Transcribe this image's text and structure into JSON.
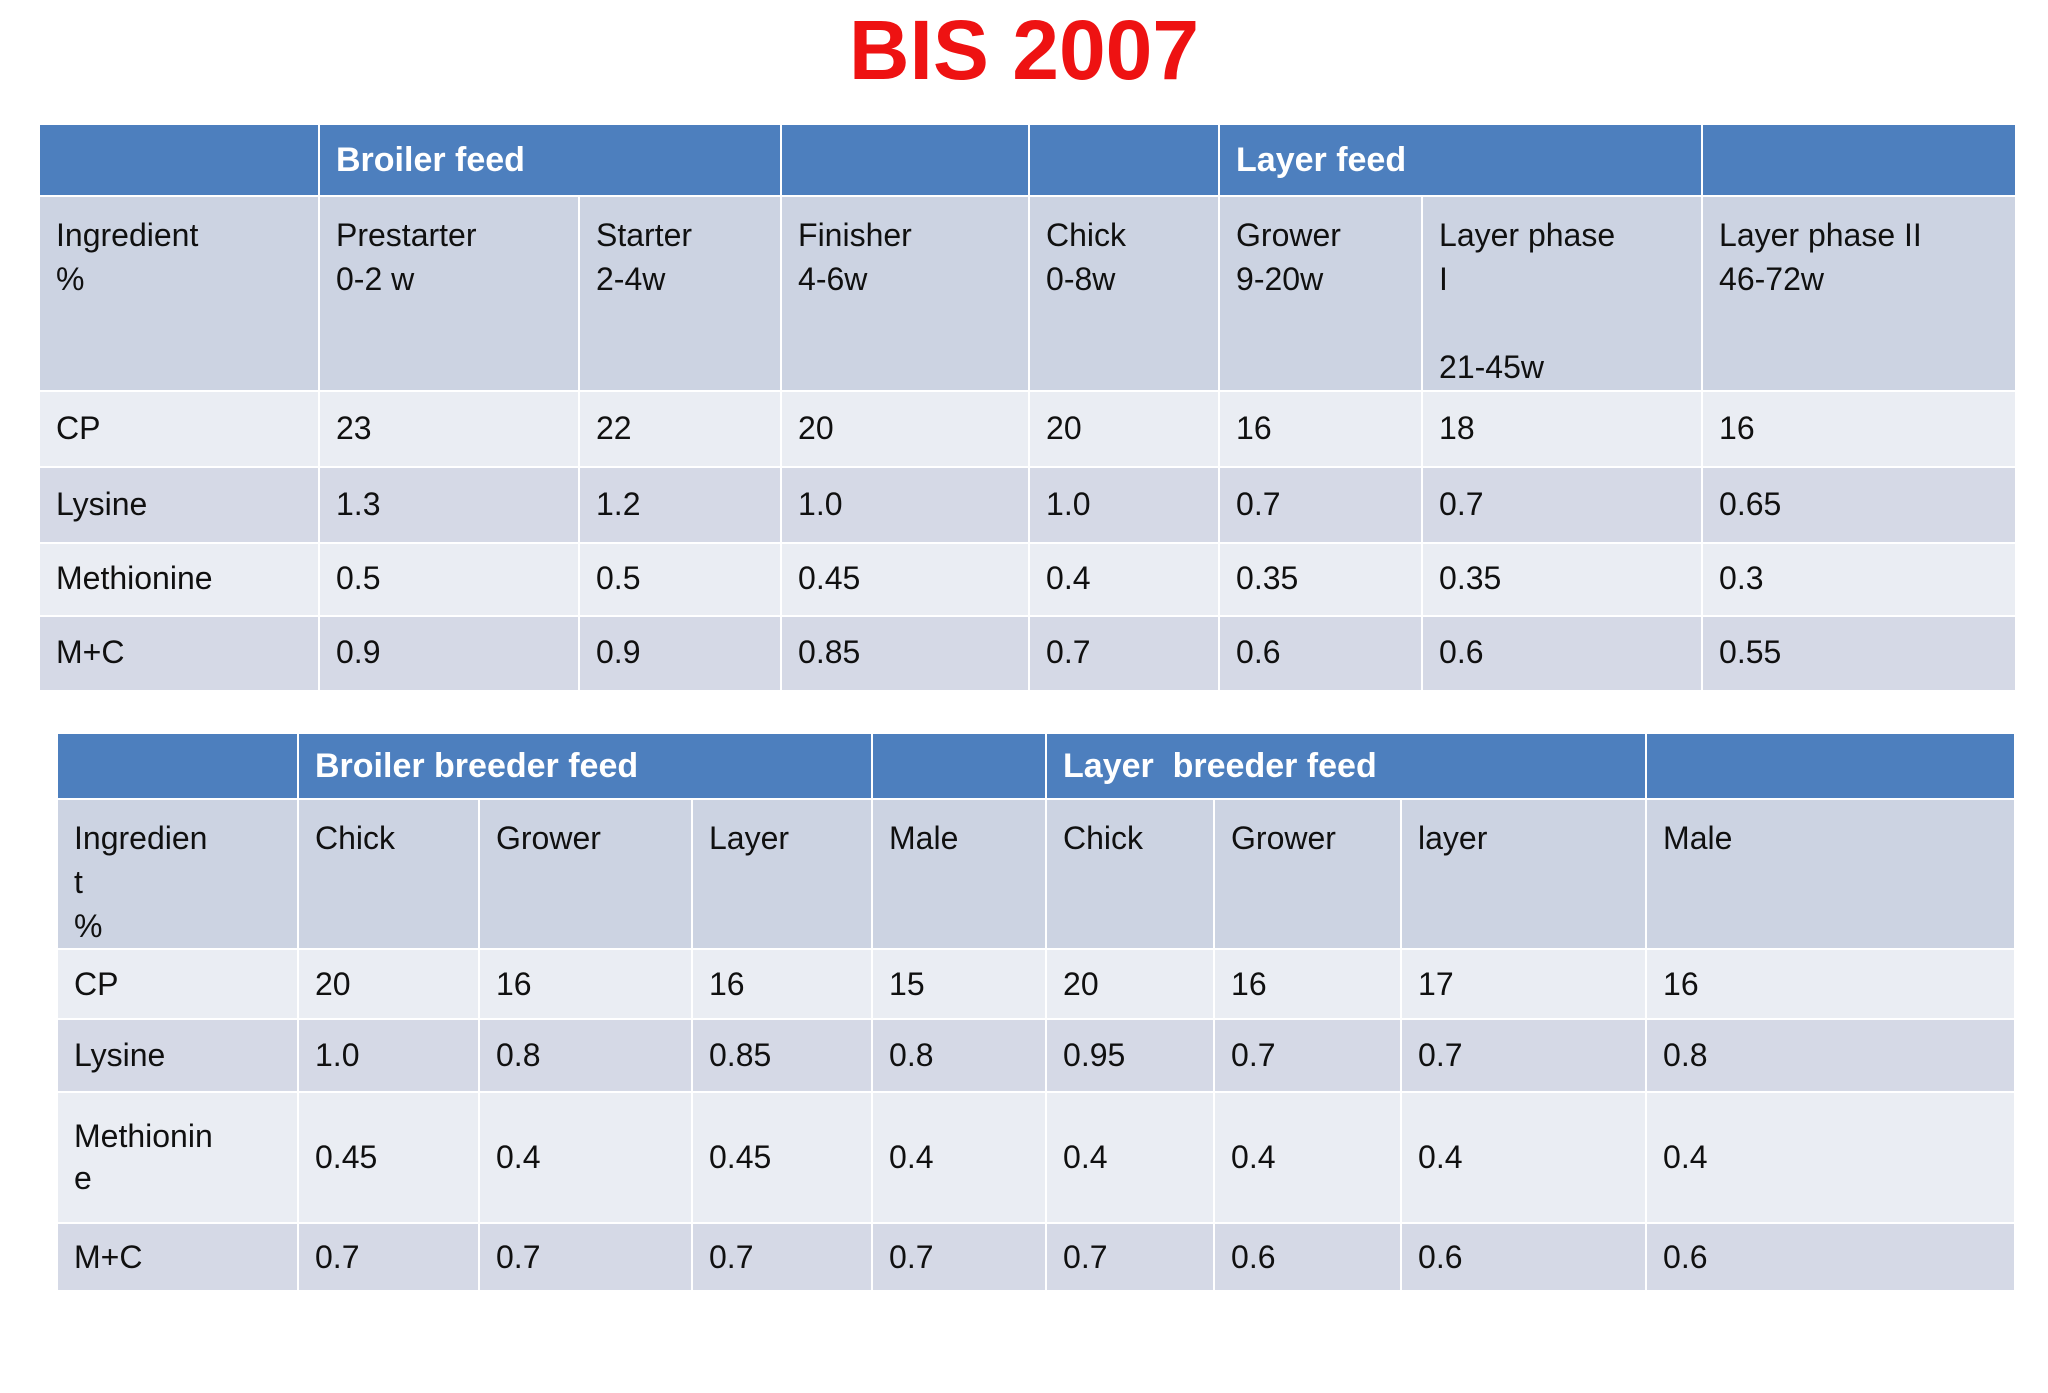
{
  "page": {
    "title": "BIS 2007"
  },
  "colors": {
    "title_red": "#ee1212",
    "banner_blue": "#4d7fbe",
    "banner_text": "#ffffff",
    "header_band": "#ccd3e2",
    "band_light": "#eaedf3",
    "band_dark": "#d5d9e6",
    "cell_text": "#101010",
    "divider_white": "#ffffff"
  },
  "table1": {
    "name": "broiler-and-layer-feed-table",
    "banner_cells": [
      {
        "label": "",
        "span": 1
      },
      {
        "label": "Broiler feed",
        "span": 2
      },
      {
        "label": "",
        "span": 1
      },
      {
        "label": "",
        "span": 1
      },
      {
        "label": "Layer feed",
        "span": 2
      },
      {
        "label": "",
        "span": 1
      }
    ],
    "column_headers": [
      "Ingredient\n%",
      "Prestarter\n0-2 w",
      "Starter\n2-4w",
      "Finisher\n4-6w",
      "Chick\n0-8w",
      "Grower\n9-20w",
      "Layer phase\nI\n\n21-45w",
      "Layer phase II\n46-72w"
    ],
    "rows": [
      {
        "label": "CP",
        "values": [
          "23",
          "22",
          "20",
          "20",
          "16",
          "18",
          "16"
        ]
      },
      {
        "label": "Lysine",
        "values": [
          "1.3",
          "1.2",
          "1.0",
          "1.0",
          "0.7",
          "0.7",
          "0.65"
        ]
      },
      {
        "label": "Methionine",
        "values": [
          "0.5",
          "0.5",
          "0.45",
          "0.4",
          "0.35",
          "0.35",
          "0.3"
        ]
      },
      {
        "label": "M+C",
        "values": [
          "0.9",
          "0.9",
          "0.85",
          "0.7",
          "0.6",
          "0.6",
          "0.55"
        ]
      }
    ]
  },
  "table2": {
    "name": "breeder-feed-table",
    "banner_cells": [
      {
        "label": "",
        "span": 1
      },
      {
        "label": "Broiler breeder feed",
        "span": 3
      },
      {
        "label": "",
        "span": 1
      },
      {
        "label": "Layer  breeder feed",
        "span": 3
      },
      {
        "label": "",
        "span": 1
      }
    ],
    "column_headers": [
      "Ingredient\n%",
      "Chick",
      "Grower",
      "Layer",
      "Male",
      "Chick",
      "Grower",
      "layer",
      "Male"
    ],
    "rows": [
      {
        "label": "CP",
        "values": [
          "20",
          "16",
          "16",
          "15",
          "20",
          "16",
          "17",
          "16"
        ]
      },
      {
        "label": "Lysine",
        "values": [
          "1.0",
          "0.8",
          "0.85",
          "0.8",
          "0.95",
          "0.7",
          "0.7",
          "0.8"
        ]
      },
      {
        "label": "Methionine",
        "values": [
          "0.45",
          "0.4",
          "0.45",
          "0.4",
          "0.4",
          "0.4",
          "0.4",
          "0.4"
        ]
      },
      {
        "label": "M+C",
        "values": [
          "0.7",
          "0.7",
          "0.7",
          "0.7",
          "0.7",
          "0.6",
          "0.6",
          "0.6"
        ]
      }
    ]
  }
}
